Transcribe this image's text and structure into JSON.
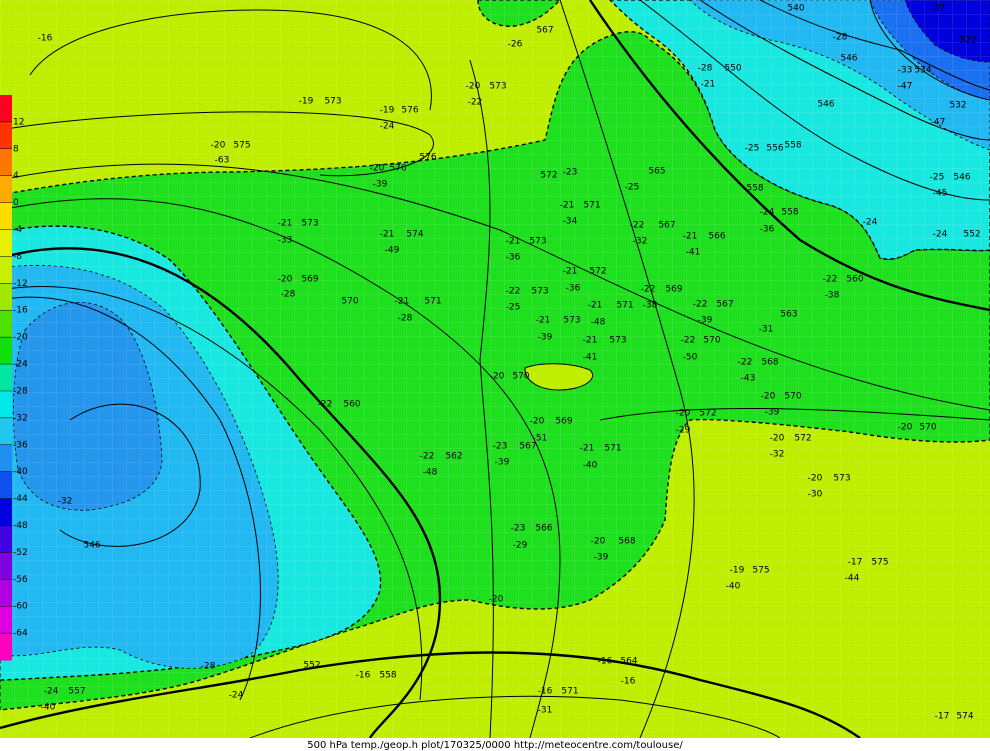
{
  "caption": "500 hPa temp./geop.h plot/170325/0000 http://meteocentre.com/toulouse/",
  "color_scale": {
    "ticks": [
      12,
      8,
      4,
      0,
      -4,
      -8,
      -12,
      -16,
      -20,
      -24,
      -28,
      -32,
      -36,
      -40,
      -44,
      -48,
      -52,
      -56,
      -60,
      -64
    ],
    "colors": [
      "#ff0022",
      "#ff3300",
      "#ff7700",
      "#ffaa00",
      "#ffdd00",
      "#e6f000",
      "#c8f000",
      "#a0e800",
      "#50e000",
      "#10e010",
      "#00e8a0",
      "#00e8e8",
      "#20c8f0",
      "#2090f0",
      "#1050f0",
      "#0000e0",
      "#4000e0",
      "#8000e0",
      "#b000e0",
      "#e000e0",
      "#ff00c0"
    ]
  },
  "labels": [
    -16,
    -26,
    567,
    -20,
    573,
    -22,
    -19,
    573,
    -19,
    576,
    -24,
    -20,
    575,
    -63,
    -20,
    576,
    -39,
    576,
    572,
    -23,
    -25,
    565,
    -21,
    573,
    -33,
    -21,
    574,
    -49,
    -21,
    571,
    -34,
    -21,
    573,
    -36,
    -21,
    572,
    -36,
    -22,
    573,
    -25,
    -21,
    571,
    -28,
    -20,
    569,
    -28,
    570,
    -21,
    573,
    -39,
    -21,
    573,
    -41,
    -21,
    571,
    -48,
    -22,
    567,
    -32,
    -21,
    566,
    -41,
    -22,
    569,
    -38,
    -22,
    567,
    -39,
    -22,
    570,
    -50,
    -22,
    568,
    -43,
    -22,
    560,
    -22,
    562,
    -48,
    -20,
    570,
    -20,
    569,
    -51,
    -23,
    567,
    -39,
    -21,
    571,
    -40,
    -23,
    566,
    -29,
    -20,
    568,
    -39,
    -20,
    572,
    -29,
    -20,
    572,
    -32,
    -20,
    573,
    -30,
    -19,
    575,
    -40,
    -17,
    575,
    -44,
    -24,
    557,
    -40,
    552,
    -28,
    -24,
    -16,
    558,
    -20,
    546,
    -32,
    -16,
    564,
    -16,
    -16,
    571,
    -31,
    -17,
    574,
    -20,
    570,
    -24,
    552,
    -24,
    -25,
    546,
    -45,
    -33,
    534,
    -47,
    532,
    -47,
    -37,
    522,
    540,
    -28,
    546,
    -28,
    550,
    -21,
    546,
    -25,
    556,
    558,
    558,
    -24,
    558,
    -36,
    -22,
    560,
    -38,
    563,
    -31,
    -20,
    570,
    -39
  ]
}
